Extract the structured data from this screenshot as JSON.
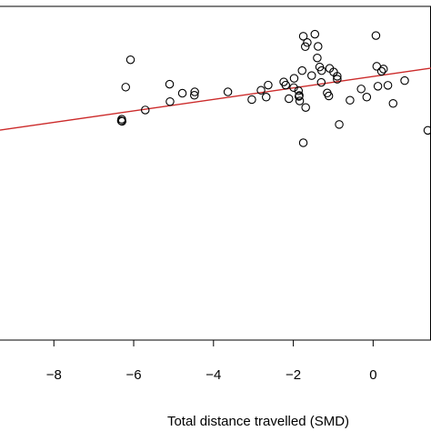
{
  "chart_data": {
    "type": "scatter",
    "title": "",
    "xlabel": "Total distance travelled (SMD)",
    "ylabel": "",
    "xlim": [
      -9.35,
      1.45
    ],
    "ylim": [
      -10.25,
      4.5
    ],
    "grid": false,
    "x_ticks": [
      -8,
      -6,
      -4,
      -2,
      0
    ],
    "x_tick_labels": [
      "−8",
      "−6",
      "−4",
      "−2",
      "0"
    ],
    "series": [
      {
        "x": [
          -6.3,
          -6.31,
          -6.29,
          -6.08,
          -6.2,
          -5.1,
          -5.71,
          -5.09,
          -4.78,
          -4.47,
          -4.48,
          -3.64,
          -3.04,
          -2.81,
          -2.68,
          -2.63,
          -2.19,
          -2.24,
          -2.11,
          -1.99,
          -1.98,
          -1.86,
          -1.75,
          -1.69,
          -1.65,
          -1.75,
          -1.78,
          -1.87,
          -1.85,
          -1.84,
          -1.7,
          -1.54,
          -1.46,
          -1.4,
          -1.38,
          -1.34,
          -1.3,
          -1.29,
          -1.15,
          -1.11,
          -1.09,
          -0.99,
          -0.9,
          -0.9,
          -0.85,
          -0.58,
          -0.3,
          -0.16,
          0.07,
          0.09,
          0.12,
          0.26,
          0.21,
          0.37,
          0.5,
          0.79,
          1.45
        ],
        "y": [
          -0.49,
          -0.56,
          -0.58,
          2.14,
          0.93,
          1.06,
          -0.08,
          0.29,
          0.66,
          0.72,
          0.57,
          0.72,
          0.38,
          0.79,
          0.49,
          1.02,
          1.02,
          1.16,
          0.42,
          0.91,
          1.32,
          0.52,
          -1.53,
          0.03,
          2.9,
          3.18,
          1.66,
          0.77,
          0.56,
          0.32,
          2.72,
          1.44,
          3.27,
          2.22,
          2.73,
          1.82,
          1.14,
          1.66,
          0.67,
          0.54,
          1.76,
          1.6,
          1.41,
          1.28,
          -0.72,
          0.35,
          0.85,
          0.49,
          3.21,
          1.85,
          0.97,
          1.73,
          1.63,
          1.01,
          0.21,
          1.22,
          -0.98
        ]
      }
    ],
    "regression_line": {
      "x": [
        -9.35,
        1.45
      ],
      "y": [
        -0.97,
        1.77
      ]
    },
    "colors": {
      "points": "#000000",
      "regression": "#cc2a2a",
      "axis": "#000000"
    }
  }
}
